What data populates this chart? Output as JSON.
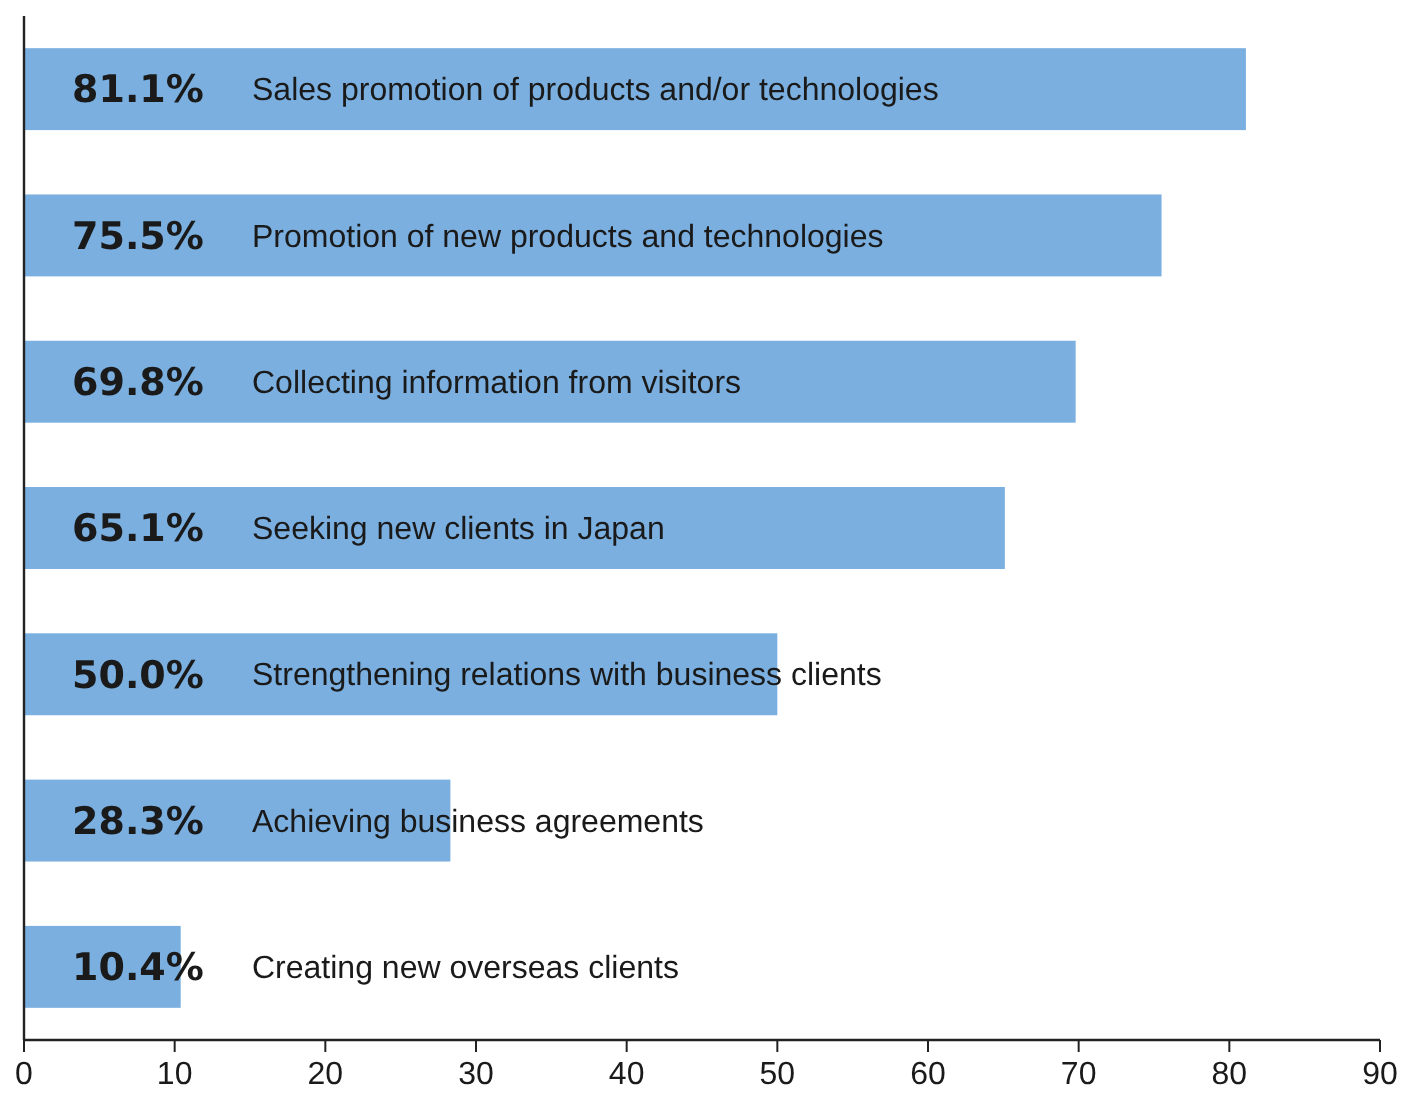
{
  "chart_data": {
    "type": "bar",
    "orientation": "horizontal",
    "categories": [
      "Sales promotion of products and/or technologies",
      "Promotion of new products and technologies",
      "Collecting information from visitors",
      "Seeking new clients in Japan",
      "Strengthening relations with business clients",
      "Achieving business agreements",
      "Creating new overseas clients"
    ],
    "values": [
      81.1,
      75.5,
      69.8,
      65.1,
      50.0,
      28.3,
      10.4
    ],
    "value_labels": [
      "81.1%",
      "75.5%",
      "69.8%",
      "65.1%",
      "50.0%",
      "28.3%",
      "10.4%"
    ],
    "color": "#7aafe0",
    "xlim": [
      0,
      90
    ],
    "xticks": [
      0,
      10,
      20,
      30,
      40,
      50,
      60,
      70,
      80,
      90
    ],
    "grid": false
  }
}
